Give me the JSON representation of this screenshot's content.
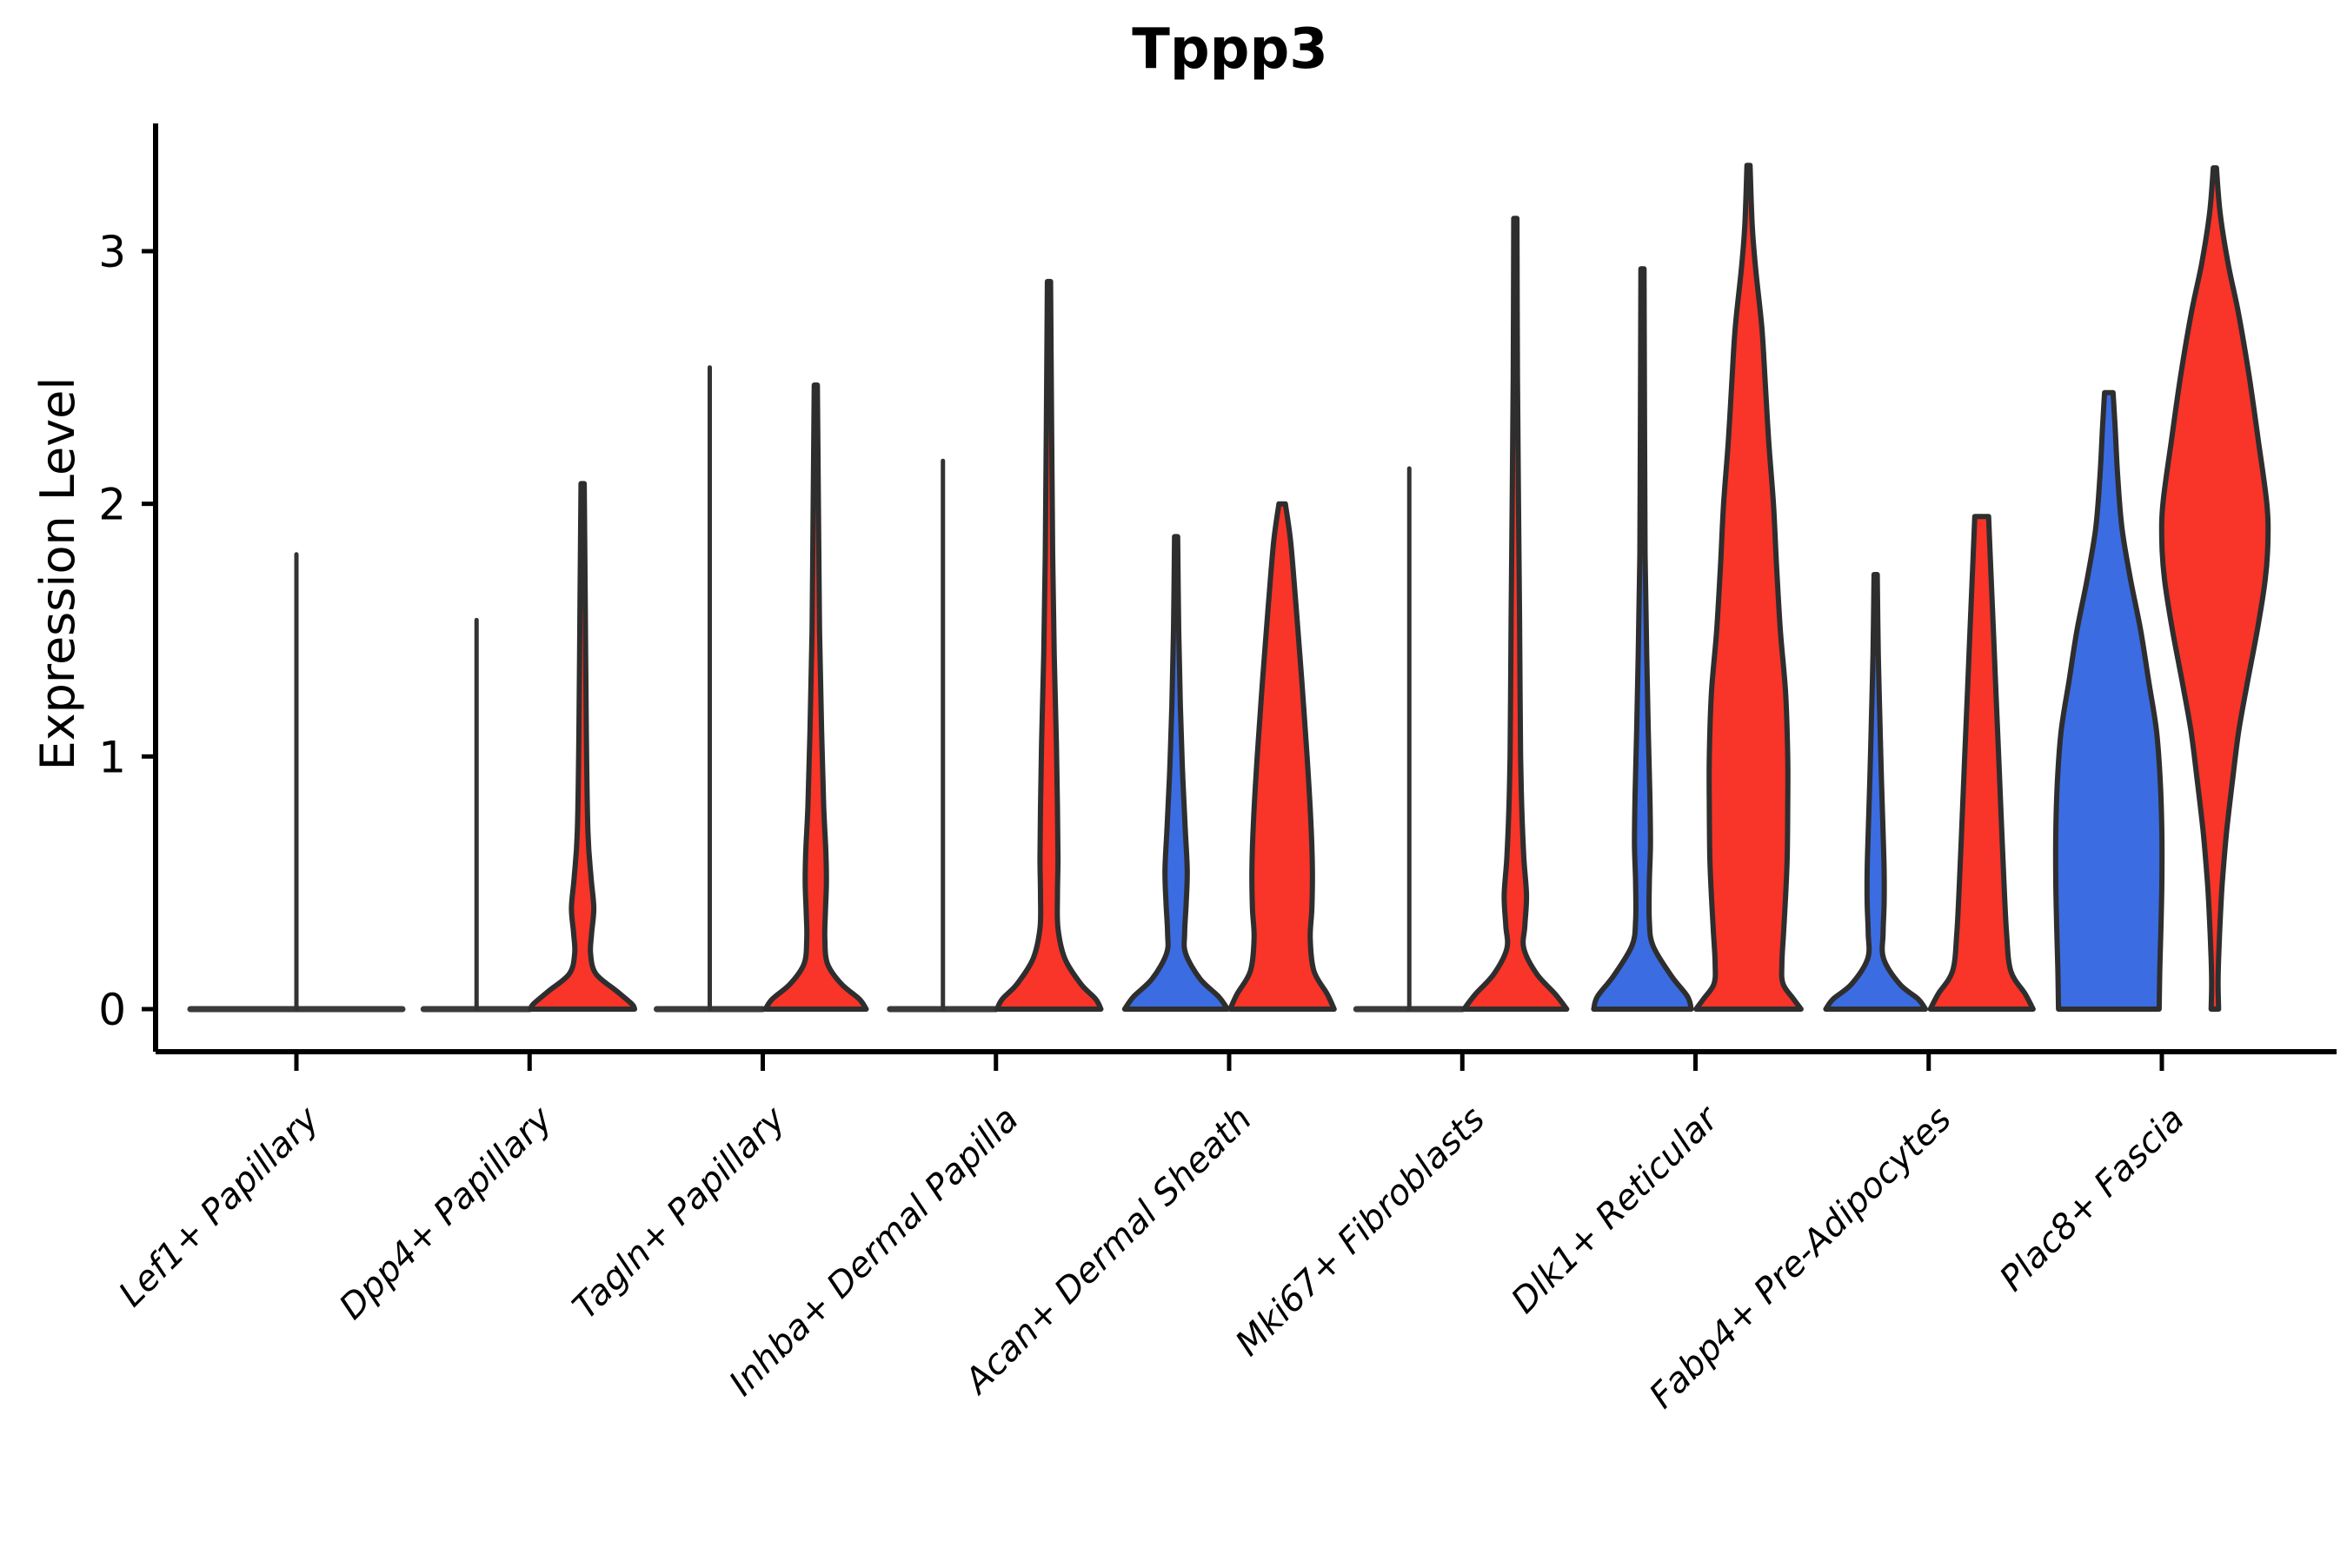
{
  "page": {
    "background": "#ffffff"
  },
  "style": {
    "violin_stroke": "#2E2E2E",
    "axis_color": "#000000",
    "flatline_color": "#3A3A3A",
    "text_color": "#000000",
    "blue": "#3B6CE2",
    "red": "#F93429"
  },
  "chart_data": {
    "type": "violin",
    "title": "Tppp3",
    "ylabel": "Expression Level",
    "xlabel": "",
    "yticks": [
      "0",
      "1",
      "2",
      "3"
    ],
    "ylim": [
      -0.17,
      3.5
    ],
    "grid": false,
    "legend": "none",
    "groups": [
      {
        "id": "blue",
        "color": "#3B6CE2"
      },
      {
        "id": "red",
        "color": "#F93429"
      }
    ],
    "categories": [
      "Lef1+ Papillary",
      "Dpp4+ Papillary",
      "Tagln+ Papillary",
      "Inhba+ Dermal Papilla",
      "Acan+ Dermal Sheath",
      "Mki67+ Fibroblasts",
      "Dlk1+ Reticular",
      "Fabp4+ Pre-Adipocytes",
      "Plac8+ Fascia"
    ],
    "violins": [
      {
        "category": "Lef1+ Papillary",
        "violins": [
          {
            "group": "unknown",
            "type": "flat_spike",
            "max_expression": 1.8,
            "width_scale": 2
          }
        ]
      },
      {
        "category": "Dpp4+ Papillary",
        "violins": [
          {
            "group": "blue",
            "type": "flat_spike",
            "max_expression": 1.54
          },
          {
            "group": "red",
            "type": "shaped",
            "max_expression": 2.08,
            "profile": [
              [
                2.08,
                0.03
              ],
              [
                1.6,
                0.05
              ],
              [
                1.1,
                0.07
              ],
              [
                0.7,
                0.1
              ],
              [
                0.52,
                0.16
              ],
              [
                0.4,
                0.21
              ],
              [
                0.3,
                0.17
              ],
              [
                0.22,
                0.15
              ],
              [
                0.14,
                0.25
              ],
              [
                0.07,
                0.65
              ],
              [
                0.02,
                0.93
              ],
              [
                0.0,
                0.98
              ]
            ]
          }
        ]
      },
      {
        "category": "Tagln+ Papillary",
        "violins": [
          {
            "group": "blue",
            "type": "flat_spike",
            "max_expression": 2.54
          },
          {
            "group": "red",
            "type": "shaped",
            "max_expression": 2.47,
            "profile": [
              [
                2.47,
                0.03
              ],
              [
                2.0,
                0.05
              ],
              [
                1.5,
                0.07
              ],
              [
                1.1,
                0.11
              ],
              [
                0.8,
                0.15
              ],
              [
                0.62,
                0.19
              ],
              [
                0.5,
                0.2
              ],
              [
                0.38,
                0.18
              ],
              [
                0.28,
                0.17
              ],
              [
                0.18,
                0.22
              ],
              [
                0.1,
                0.48
              ],
              [
                0.04,
                0.82
              ],
              [
                0.0,
                0.95
              ]
            ]
          }
        ]
      },
      {
        "category": "Inhba+ Dermal Papilla",
        "violins": [
          {
            "group": "blue",
            "type": "flat_spike",
            "max_expression": 2.17
          },
          {
            "group": "red",
            "type": "shaped",
            "max_expression": 2.88,
            "profile": [
              [
                2.88,
                0.03
              ],
              [
                2.3,
                0.05
              ],
              [
                1.8,
                0.07
              ],
              [
                1.4,
                0.1
              ],
              [
                1.05,
                0.14
              ],
              [
                0.8,
                0.16
              ],
              [
                0.6,
                0.17
              ],
              [
                0.45,
                0.16
              ],
              [
                0.32,
                0.17
              ],
              [
                0.2,
                0.3
              ],
              [
                0.1,
                0.6
              ],
              [
                0.04,
                0.88
              ],
              [
                0.0,
                0.98
              ]
            ]
          }
        ]
      },
      {
        "category": "Acan+ Dermal Sheath",
        "violins": [
          {
            "group": "blue",
            "type": "shaped",
            "max_expression": 1.87,
            "profile": [
              [
                1.87,
                0.03
              ],
              [
                1.5,
                0.05
              ],
              [
                1.2,
                0.08
              ],
              [
                0.95,
                0.12
              ],
              [
                0.72,
                0.17
              ],
              [
                0.55,
                0.21
              ],
              [
                0.42,
                0.19
              ],
              [
                0.3,
                0.16
              ],
              [
                0.22,
                0.18
              ],
              [
                0.12,
                0.45
              ],
              [
                0.05,
                0.8
              ],
              [
                0.0,
                0.97
              ]
            ]
          },
          {
            "group": "red",
            "type": "shaped",
            "max_expression": 2.0,
            "profile": [
              [
                2.0,
                0.06
              ],
              [
                1.85,
                0.16
              ],
              [
                1.6,
                0.26
              ],
              [
                1.3,
                0.37
              ],
              [
                1.0,
                0.47
              ],
              [
                0.75,
                0.54
              ],
              [
                0.55,
                0.57
              ],
              [
                0.4,
                0.56
              ],
              [
                0.28,
                0.53
              ],
              [
                0.15,
                0.6
              ],
              [
                0.06,
                0.85
              ],
              [
                0.0,
                0.98
              ]
            ]
          }
        ]
      },
      {
        "category": "Mki67+ Fibroblasts",
        "violins": [
          {
            "group": "blue",
            "type": "flat_spike",
            "max_expression": 2.14
          },
          {
            "group": "red",
            "type": "shaped",
            "max_expression": 3.13,
            "profile": [
              [
                3.13,
                0.03
              ],
              [
                2.5,
                0.04
              ],
              [
                2.0,
                0.06
              ],
              [
                1.55,
                0.08
              ],
              [
                1.25,
                0.09
              ],
              [
                1.0,
                0.1
              ],
              [
                0.8,
                0.12
              ],
              [
                0.6,
                0.16
              ],
              [
                0.45,
                0.21
              ],
              [
                0.33,
                0.18
              ],
              [
                0.24,
                0.16
              ],
              [
                0.14,
                0.4
              ],
              [
                0.06,
                0.75
              ],
              [
                0.0,
                0.97
              ]
            ]
          }
        ]
      },
      {
        "category": "Dlk1+ Reticular",
        "violins": [
          {
            "group": "blue",
            "type": "shaped",
            "max_expression": 2.93,
            "profile": [
              [
                2.93,
                0.03
              ],
              [
                2.3,
                0.04
              ],
              [
                1.8,
                0.05
              ],
              [
                1.4,
                0.08
              ],
              [
                1.1,
                0.11
              ],
              [
                0.85,
                0.14
              ],
              [
                0.65,
                0.15
              ],
              [
                0.5,
                0.13
              ],
              [
                0.35,
                0.13
              ],
              [
                0.25,
                0.2
              ],
              [
                0.13,
                0.55
              ],
              [
                0.05,
                0.85
              ],
              [
                0.0,
                0.92
              ]
            ]
          },
          {
            "group": "red",
            "type": "shaped",
            "max_expression": 3.34,
            "profile": [
              [
                3.34,
                0.03
              ],
              [
                3.1,
                0.07
              ],
              [
                2.92,
                0.14
              ],
              [
                2.7,
                0.25
              ],
              [
                2.5,
                0.31
              ],
              [
                2.25,
                0.38
              ],
              [
                2.0,
                0.47
              ],
              [
                1.75,
                0.53
              ],
              [
                1.5,
                0.6
              ],
              [
                1.25,
                0.7
              ],
              [
                1.0,
                0.74
              ],
              [
                0.8,
                0.74
              ],
              [
                0.6,
                0.73
              ],
              [
                0.45,
                0.7
              ],
              [
                0.3,
                0.66
              ],
              [
                0.18,
                0.63
              ],
              [
                0.1,
                0.65
              ],
              [
                0.04,
                0.85
              ],
              [
                0.0,
                0.99
              ]
            ]
          }
        ]
      },
      {
        "category": "Fabp4+ Pre-Adipocytes",
        "violins": [
          {
            "group": "blue",
            "type": "shaped",
            "max_expression": 1.72,
            "profile": [
              [
                1.72,
                0.03
              ],
              [
                1.4,
                0.05
              ],
              [
                1.15,
                0.08
              ],
              [
                0.9,
                0.11
              ],
              [
                0.7,
                0.14
              ],
              [
                0.55,
                0.16
              ],
              [
                0.42,
                0.16
              ],
              [
                0.3,
                0.14
              ],
              [
                0.2,
                0.15
              ],
              [
                0.1,
                0.45
              ],
              [
                0.04,
                0.8
              ],
              [
                0.0,
                0.94
              ]
            ]
          },
          {
            "group": "red",
            "type": "shaped",
            "max_expression": 1.95,
            "profile": [
              [
                1.95,
                0.13
              ],
              [
                1.75,
                0.17
              ],
              [
                1.5,
                0.22
              ],
              [
                1.25,
                0.27
              ],
              [
                1.0,
                0.32
              ],
              [
                0.75,
                0.37
              ],
              [
                0.5,
                0.42
              ],
              [
                0.3,
                0.47
              ],
              [
                0.15,
                0.55
              ],
              [
                0.06,
                0.82
              ],
              [
                0.0,
                0.97
              ]
            ]
          }
        ]
      },
      {
        "category": "Plac8+ Fascia",
        "violins": [
          {
            "group": "blue",
            "type": "shaped",
            "max_expression": 2.44,
            "profile": [
              [
                2.44,
                0.08
              ],
              [
                2.3,
                0.12
              ],
              [
                2.1,
                0.17
              ],
              [
                1.9,
                0.25
              ],
              [
                1.7,
                0.41
              ],
              [
                1.5,
                0.6
              ],
              [
                1.3,
                0.75
              ],
              [
                1.1,
                0.9
              ],
              [
                0.9,
                0.97
              ],
              [
                0.7,
                1.0
              ],
              [
                0.5,
                1.0
              ],
              [
                0.3,
                0.98
              ],
              [
                0.15,
                0.96
              ],
              [
                0.0,
                0.95
              ]
            ]
          },
          {
            "group": "red",
            "type": "shaped",
            "max_expression": 3.33,
            "profile": [
              [
                3.33,
                0.03
              ],
              [
                3.15,
                0.1
              ],
              [
                2.95,
                0.25
              ],
              [
                2.75,
                0.45
              ],
              [
                2.5,
                0.65
              ],
              [
                2.25,
                0.82
              ],
              [
                2.0,
                0.98
              ],
              [
                1.85,
                1.0
              ],
              [
                1.7,
                0.95
              ],
              [
                1.5,
                0.8
              ],
              [
                1.3,
                0.62
              ],
              [
                1.1,
                0.45
              ],
              [
                0.9,
                0.33
              ],
              [
                0.7,
                0.22
              ],
              [
                0.5,
                0.14
              ],
              [
                0.35,
                0.1
              ],
              [
                0.2,
                0.07
              ],
              [
                0.1,
                0.06
              ],
              [
                0.0,
                0.07
              ]
            ]
          }
        ]
      }
    ]
  }
}
